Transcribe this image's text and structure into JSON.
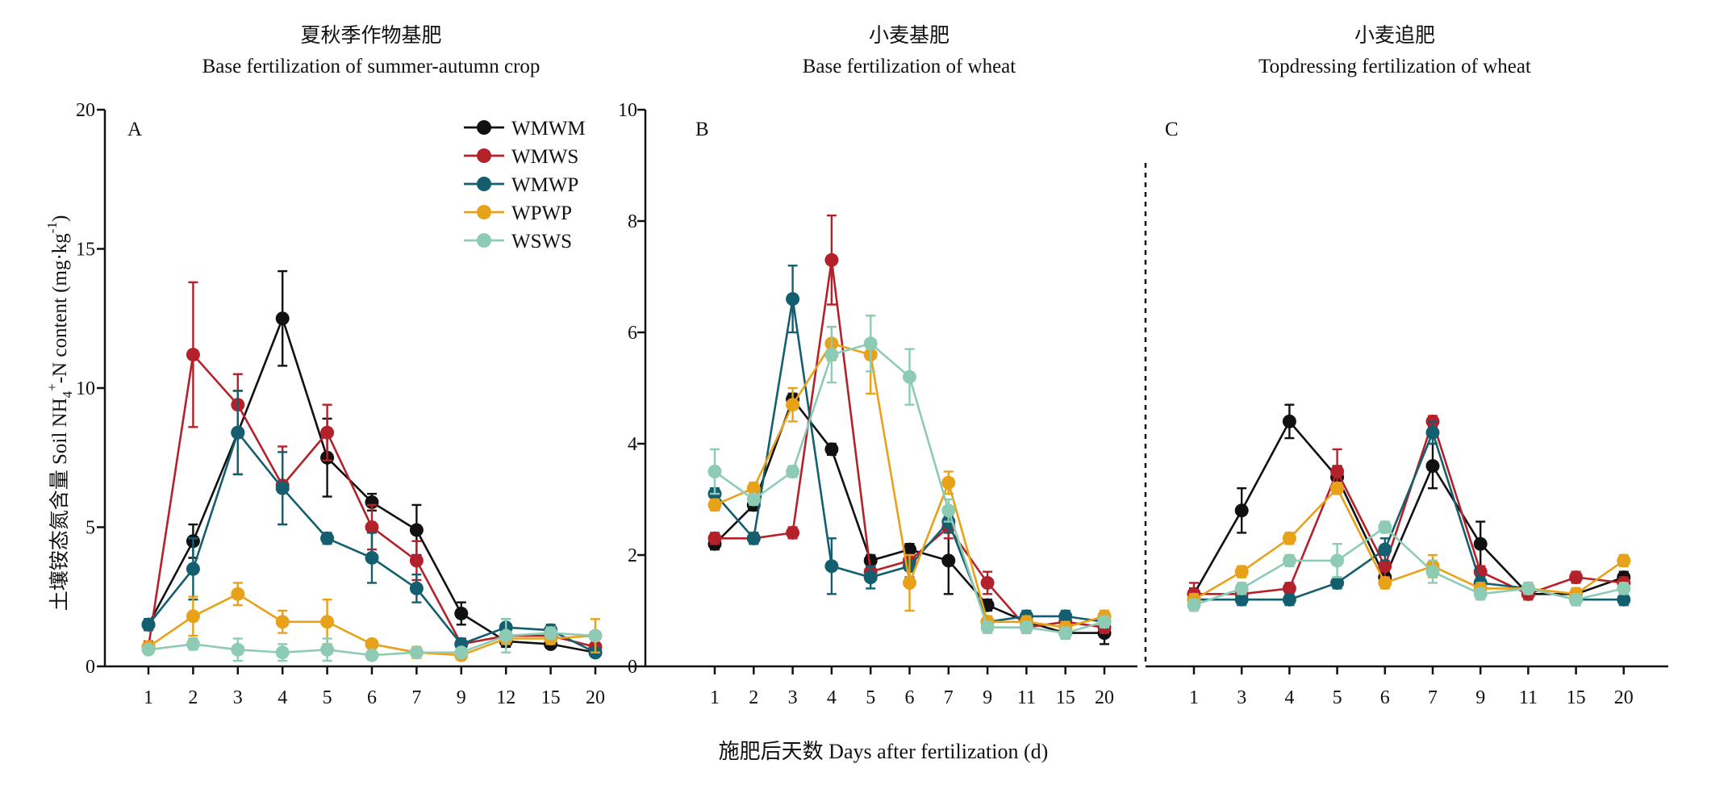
{
  "figure": {
    "x_axis_label": "施肥后天数 Days after fertilization (d)",
    "y_axis_label": "土壤铵态氮含量 Soil NH",
    "y_axis_sub": "4",
    "y_axis_sup": "+",
    "y_axis_label_rest": "-N content (mg·kg",
    "y_axis_unit_sup": "-1",
    "y_axis_unit_close": ")"
  },
  "legend": [
    {
      "name": "WMWM",
      "color": "#111111"
    },
    {
      "name": "WMWS",
      "color": "#b3222a"
    },
    {
      "name": "WMWP",
      "color": "#135f6f"
    },
    {
      "name": "WPWP",
      "color": "#e8a21a"
    },
    {
      "name": "WSWS",
      "color": "#8ecbb5"
    }
  ],
  "chart_data": [
    {
      "type": "line",
      "panel": "A",
      "title_cn": "夏秋季作物基肥",
      "title": "Base fertilization of summer-autumn crop",
      "categories": [
        "1",
        "2",
        "3",
        "4",
        "5",
        "6",
        "7",
        "9",
        "12",
        "15",
        "20"
      ],
      "ylim": [
        0,
        20
      ],
      "yticks": [
        0,
        5,
        10,
        15,
        20
      ],
      "series": [
        {
          "name": "WMWM",
          "values": [
            1.5,
            4.5,
            8.4,
            12.5,
            7.5,
            5.9,
            4.9,
            1.9,
            0.9,
            0.8,
            0.5
          ],
          "errors": [
            0.2,
            0.6,
            1.5,
            1.7,
            1.4,
            0.3,
            0.9,
            0.4,
            0.2,
            0.1,
            0.1
          ]
        },
        {
          "name": "WMWS",
          "values": [
            0.7,
            11.2,
            9.4,
            6.5,
            8.4,
            5.0,
            3.8,
            0.8,
            1.1,
            1.1,
            0.7
          ],
          "errors": [
            0.2,
            2.6,
            1.1,
            1.4,
            1.0,
            0.8,
            0.7,
            0.2,
            0.2,
            0.1,
            0.1
          ]
        },
        {
          "name": "WMWP",
          "values": [
            1.5,
            3.5,
            8.4,
            6.4,
            4.6,
            3.9,
            2.8,
            0.8,
            1.4,
            1.3,
            0.5
          ],
          "errors": [
            0.2,
            1.1,
            1.5,
            1.3,
            0.2,
            0.9,
            0.5,
            0.2,
            0.3,
            0.2,
            0.1
          ]
        },
        {
          "name": "WPWP",
          "values": [
            0.7,
            1.8,
            2.6,
            1.6,
            1.6,
            0.8,
            0.5,
            0.4,
            1.0,
            1.0,
            1.1
          ],
          "errors": [
            0.1,
            0.7,
            0.4,
            0.4,
            0.8,
            0.1,
            0.2,
            0.1,
            0.2,
            0.2,
            0.6
          ]
        },
        {
          "name": "WSWS",
          "values": [
            0.6,
            0.8,
            0.6,
            0.5,
            0.6,
            0.4,
            0.5,
            0.5,
            1.1,
            1.2,
            1.1
          ],
          "errors": [
            0.1,
            0.2,
            0.4,
            0.3,
            0.4,
            0.1,
            0.1,
            0.1,
            0.6,
            0.2,
            0.1
          ]
        }
      ]
    },
    {
      "type": "line",
      "panel": "B",
      "title_cn": "小麦基肥",
      "title": "Base fertilization of  wheat",
      "categories": [
        "1",
        "2",
        "3",
        "4",
        "5",
        "6",
        "7",
        "9",
        "11",
        "15",
        "20"
      ],
      "ylim": [
        0,
        10
      ],
      "yticks": [
        0,
        2,
        4,
        6,
        8,
        10
      ],
      "series": [
        {
          "name": "WMWM",
          "values": [
            2.2,
            2.9,
            4.8,
            3.9,
            1.9,
            2.1,
            1.9,
            1.1,
            0.8,
            0.6,
            0.6
          ],
          "errors": [
            0.1,
            0.1,
            0.1,
            0.1,
            0.1,
            0.1,
            0.6,
            0.1,
            0.1,
            0.1,
            0.2
          ]
        },
        {
          "name": "WMWS",
          "values": [
            2.3,
            2.3,
            2.4,
            7.3,
            1.7,
            1.9,
            2.5,
            1.5,
            0.7,
            0.8,
            0.7
          ],
          "errors": [
            0.1,
            0.1,
            0.1,
            0.8,
            0.1,
            0.1,
            0.2,
            0.2,
            0.1,
            0.1,
            0.1
          ]
        },
        {
          "name": "WMWP",
          "values": [
            3.1,
            2.3,
            6.6,
            1.8,
            1.6,
            1.8,
            2.6,
            0.8,
            0.9,
            0.9,
            0.8
          ],
          "errors": [
            0.1,
            0.1,
            0.6,
            0.5,
            0.2,
            0.2,
            0.2,
            0.1,
            0.1,
            0.1,
            0.1
          ]
        },
        {
          "name": "WPWP",
          "values": [
            2.9,
            3.2,
            4.7,
            5.8,
            5.6,
            1.5,
            3.3,
            0.8,
            0.8,
            0.7,
            0.9
          ],
          "errors": [
            0.1,
            0.1,
            0.3,
            0.3,
            0.7,
            0.5,
            0.2,
            0.1,
            0.1,
            0.1,
            0.1
          ]
        },
        {
          "name": "WSWS",
          "values": [
            3.5,
            3.0,
            3.5,
            5.6,
            5.8,
            5.2,
            2.8,
            0.7,
            0.7,
            0.6,
            0.8
          ],
          "errors": [
            0.4,
            0.1,
            0.1,
            0.5,
            0.5,
            0.5,
            0.2,
            0.1,
            0.1,
            0.1,
            0.1
          ]
        }
      ]
    },
    {
      "type": "line",
      "panel": "C",
      "title_cn": "小麦追肥",
      "title": "Topdressing fertilization of  wheat",
      "categories": [
        "1",
        "3",
        "4",
        "5",
        "6",
        "7",
        "9",
        "11",
        "15",
        "20"
      ],
      "ylim": [
        0,
        10
      ],
      "series": [
        {
          "name": "WMWM",
          "values": [
            1.3,
            2.8,
            4.4,
            3.4,
            1.6,
            3.6,
            2.2,
            1.3,
            1.3,
            1.6
          ],
          "errors": [
            0.1,
            0.4,
            0.3,
            0.2,
            0.1,
            0.4,
            0.4,
            0.1,
            0.1,
            0.1
          ]
        },
        {
          "name": "WMWS",
          "values": [
            1.3,
            1.3,
            1.4,
            3.5,
            1.8,
            4.4,
            1.7,
            1.3,
            1.6,
            1.5
          ],
          "errors": [
            0.2,
            0.1,
            0.1,
            0.4,
            0.2,
            0.1,
            0.1,
            0.1,
            0.1,
            0.1
          ]
        },
        {
          "name": "WMWP",
          "values": [
            1.2,
            1.2,
            1.2,
            1.5,
            2.1,
            4.2,
            1.5,
            1.4,
            1.2,
            1.2
          ],
          "errors": [
            0.1,
            0.1,
            0.1,
            0.1,
            0.2,
            0.2,
            0.1,
            0.1,
            0.1,
            0.1
          ]
        },
        {
          "name": "WPWP",
          "values": [
            1.2,
            1.7,
            2.3,
            3.2,
            1.5,
            1.8,
            1.4,
            1.4,
            1.3,
            1.9
          ],
          "errors": [
            0.1,
            0.1,
            0.1,
            0.1,
            0.1,
            0.2,
            0.1,
            0.1,
            0.1,
            0.1
          ]
        },
        {
          "name": "WSWS",
          "values": [
            1.1,
            1.4,
            1.9,
            1.9,
            2.5,
            1.7,
            1.3,
            1.4,
            1.2,
            1.4
          ],
          "errors": [
            0.1,
            0.1,
            0.1,
            0.3,
            0.1,
            0.2,
            0.1,
            0.1,
            0.1,
            0.1
          ]
        }
      ]
    }
  ]
}
